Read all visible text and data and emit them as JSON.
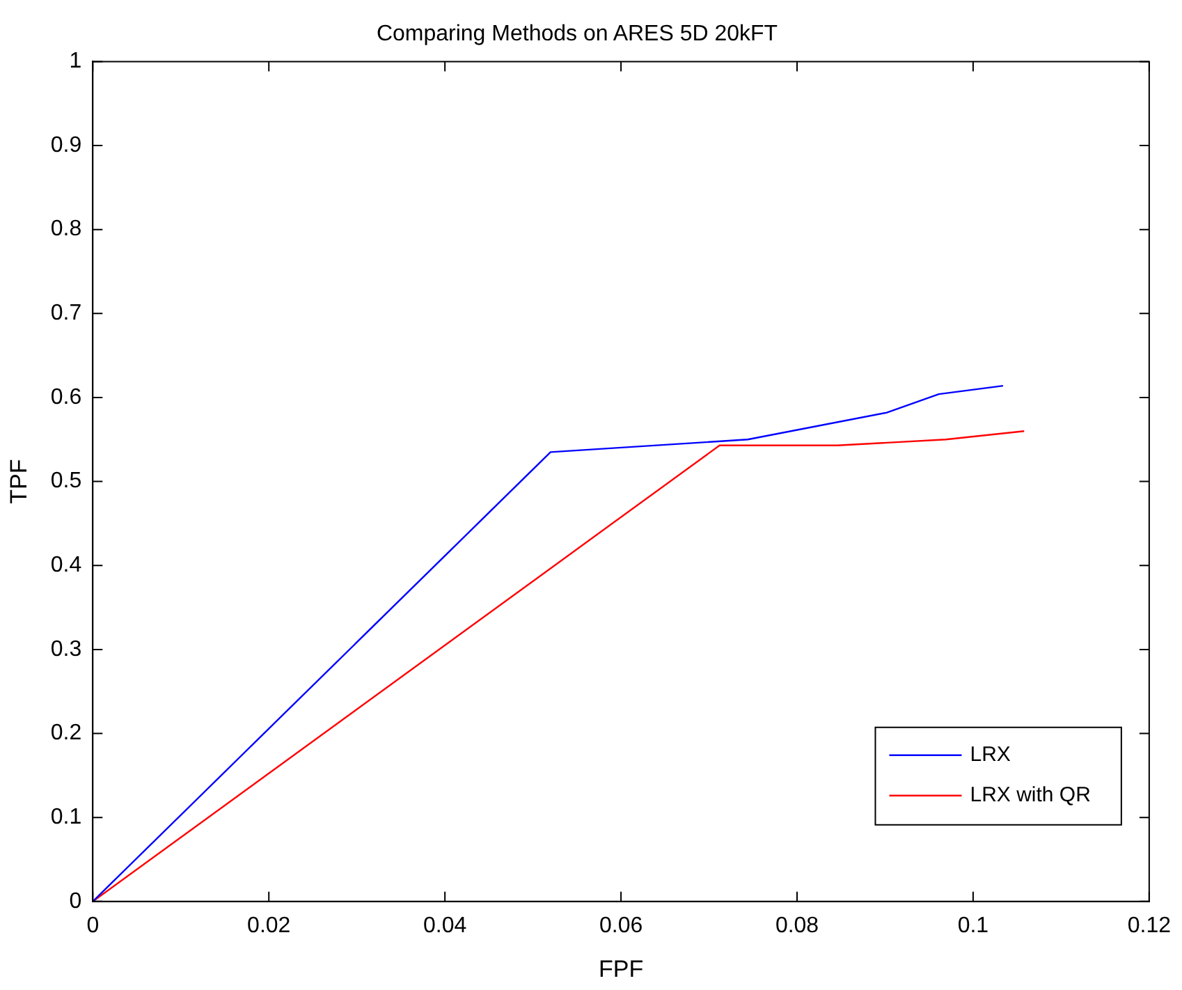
{
  "chart_data": {
    "type": "line",
    "title": "Comparing Methods on ARES 5D 20kFT",
    "xlabel": "FPF",
    "ylabel": "TPF",
    "series": [
      {
        "name": "LRX",
        "color": "#0000ff",
        "x": [
          0,
          0.052,
          0.0744,
          0.0902,
          0.0961,
          0.1034
        ],
        "values": [
          0,
          0.535,
          0.55,
          0.582,
          0.604,
          0.614
        ]
      },
      {
        "name": "LRX with QR",
        "color": "#ff0000",
        "x": [
          0,
          0.0712,
          0.0846,
          0.0969,
          0.1058
        ],
        "values": [
          0,
          0.543,
          0.543,
          0.55,
          0.56
        ]
      }
    ],
    "xlim": [
      0,
      0.12
    ],
    "xticks": [
      0,
      0.02,
      0.04,
      0.06,
      0.08,
      0.1,
      0.12
    ],
    "ylim": [
      0,
      1
    ],
    "yticks": [
      0,
      0.1,
      0.2,
      0.3,
      0.4,
      0.5,
      0.6,
      0.7,
      0.8,
      0.9,
      1
    ],
    "grid": false,
    "legend": "bottom right",
    "marker": "none",
    "line_style": "solid"
  }
}
